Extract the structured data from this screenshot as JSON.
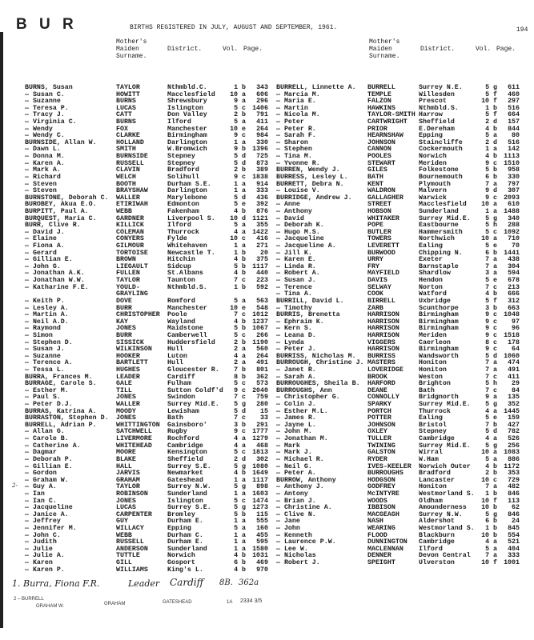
{
  "header": {
    "letters": "B U R",
    "title": "BIRTHS REGISTERED IN JULY, AUGUST AND SEPTEMBER, 1961.",
    "page_number": "194"
  },
  "columns": {
    "mother": [
      "Mother's",
      "Maiden",
      "Surname."
    ],
    "district": "District.",
    "vol": "Vol.",
    "page": "Page."
  },
  "left_rows": [
    [
      "BURNS, Susan",
      "TAYLOR",
      "Nthmbld.C.",
      "1 b",
      "343"
    ],
    [
      "— Susan C.",
      "HOWITT",
      "Macclesfield",
      "10 a",
      "606"
    ],
    [
      "— Suzanne",
      "BURNS",
      "Shrewsbury",
      "9 a",
      "296"
    ],
    [
      "— Teresa P.",
      "LUCAS",
      "Islington",
      "5 c",
      "1406"
    ],
    [
      "— Tracy J.",
      "CATT",
      "Don Valley",
      "2 b",
      "791"
    ],
    [
      "— Virginia C.",
      "BURNS",
      "Ilford",
      "5 a",
      "411"
    ],
    [
      "— Wendy",
      "FOX",
      "Manchester",
      "10 e",
      "264"
    ],
    [
      "— Wendy C.",
      "CLARKE",
      "Birmingham",
      "9 c",
      "984"
    ],
    [
      "BURNSIDE, Allan W.",
      "HOLLAND",
      "Darlington",
      "1 a",
      "330"
    ],
    [
      "— Dawn L.",
      "SMITH",
      "W.Bromwich",
      "9 b",
      "1396"
    ],
    [
      "— Donna M.",
      "BURNSIDE",
      "Stepney",
      "5 d",
      "725"
    ],
    [
      "— Karen A.",
      "RUSSELL",
      "Stepney",
      "5 d",
      "873"
    ],
    [
      "— Mark A.",
      "CLAVIN",
      "Bradford",
      "2 b",
      "389"
    ],
    [
      "— Richard",
      "WELCH",
      "Solihull",
      "9 c",
      "1838"
    ],
    [
      "— Steven",
      "BOOTH",
      "Durham S.E.",
      "1 a",
      "914"
    ],
    [
      "— Steven",
      "BRAYSHAW",
      "Darlington",
      "1 a",
      "333"
    ],
    [
      "BURNSTONE, Deborah C.",
      "WALLER",
      "Marylebone",
      "5 d",
      "436"
    ],
    [
      "BUROBEY, Akua E.O.",
      "ETIRIWAH",
      "Edmonton",
      "5 e",
      "392"
    ],
    [
      "BURPITT, Paul A.",
      "WEBB",
      "Fakenham",
      "4 b",
      "876"
    ],
    [
      "BURQUEST, Maria C.",
      "GARDNER",
      "Liverpool S.",
      "10 d",
      "1121"
    ],
    [
      "BURR, Clive R.",
      "KILLICK",
      "Ilford",
      "5 a",
      "355"
    ],
    [
      "— David J.",
      "COLEMAN",
      "Thurrock",
      "4 a",
      "1422"
    ],
    [
      "— Elaine",
      "CONYERS",
      "Fylde",
      "10 c",
      "416"
    ],
    [
      "— Fiona A.",
      "GILMOUR",
      "Whitehaven",
      "1 a",
      "271"
    ],
    [
      "— Gerard",
      "TORTOISE",
      "Newcastle T.",
      "1 b",
      "20"
    ],
    [
      "— Gillian E.",
      "BROWN",
      "Hitchin",
      "4 b",
      "375"
    ],
    [
      "— John G.",
      "LIEGAULT",
      "Sidcup",
      "5 b",
      "1117"
    ],
    [
      "— Jonathan A.K.",
      "FULLEN",
      "St.Albans",
      "4 b",
      "440"
    ],
    [
      "— Jonathan W.W.",
      "TAYLOR",
      "Taunton",
      "7 c",
      "223"
    ],
    [
      "— Katharine F.E.",
      "YOULD-",
      "Nthmbld.S.",
      "1 b",
      "592"
    ],
    [
      "",
      "GRAYLING",
      "",
      "",
      ""
    ],
    [
      "— Keith P.",
      "DOVE",
      "Romford",
      "5 a",
      "563"
    ],
    [
      "— Lesley A.",
      "BURR",
      "Manchester",
      "10 e",
      "548"
    ],
    [
      "— Martin A.",
      "CHRISTOPHER",
      "Poole",
      "7 c",
      "1012"
    ],
    [
      "— Neil A.D.",
      "KAY",
      "Wayland",
      "4 b",
      "1237"
    ],
    [
      "— Raymond",
      "JONES",
      "Maidstone",
      "5 b",
      "1067"
    ],
    [
      "— Simon",
      "BURR",
      "Camberwell",
      "5 c",
      "266"
    ],
    [
      "— Stephen D.",
      "SISSICK",
      "Huddersfield",
      "2 b",
      "1190"
    ],
    [
      "— Susan J.",
      "WILKINSON",
      "Hull",
      "2 a",
      "560"
    ],
    [
      "— Suzanne",
      "HOOKER",
      "Luton",
      "4 a",
      "264"
    ],
    [
      "— Terence A.",
      "BARTLETT",
      "Hull",
      "2 a",
      "491"
    ],
    [
      "— Tessa L.",
      "HUGHES",
      "Gloucester R.",
      "7 b",
      "801"
    ],
    [
      "BURRA, Frances M.",
      "LEADER",
      "Cardiff",
      "8 b",
      "362"
    ],
    [
      "BURRAGE, Carole S.",
      "GALE",
      "Fulham",
      "5 c",
      "573"
    ],
    [
      "— Esther M.",
      "TILL",
      "Sutton Coldf'd",
      "9 c",
      "2040"
    ],
    [
      "— Paul S.",
      "JONES",
      "Swindon",
      "7 c",
      "759"
    ],
    [
      "— Peter D.J.",
      "WALLER",
      "Surrey Mid.E.",
      "5 g",
      "280"
    ],
    [
      "BURRAS, Katrina A.",
      "MOODY",
      "Lewisham",
      "5 d",
      "15"
    ],
    [
      "BURRASTON, Stephen D.",
      "JONES",
      "Bath",
      "7 c",
      "33"
    ],
    [
      "BURRELL, Adrian P.",
      "WHITTINGTON",
      "Gainsboro'",
      "3 b",
      "291"
    ],
    [
      "— Allan G.",
      "SATCHWELL",
      "Rugby",
      "9 c",
      "1777"
    ],
    [
      "— Carole B.",
      "LIVERMORE",
      "Rochford",
      "4 a",
      "1279"
    ],
    [
      "— Catherine A.",
      "WHITEHEAD",
      "Cambridge",
      "4 a",
      "468"
    ],
    [
      "— Dagmar",
      "MOORE",
      "Kensington",
      "5 c",
      "1813"
    ],
    [
      "— Deborah P.",
      "BLAKE",
      "Sheffield",
      "2 d",
      "302"
    ],
    [
      "— Gillian E.",
      "HALL",
      "Surrey S.E.",
      "5 g",
      "1080"
    ],
    [
      "— Gordon",
      "JARVIS",
      "Newmarket",
      "4 b",
      "1649"
    ],
    [
      "— Graham W.",
      "GRAHAM",
      "Gateshead",
      "1 a",
      "1117"
    ],
    [
      "— Guy A.",
      "TAYLOR",
      "Surrey N.W.",
      "5 g",
      "898"
    ],
    [
      "— Ian",
      "ROBINSON",
      "Sunderland",
      "1 a",
      "1603"
    ],
    [
      "— Ian C.",
      "JONES",
      "Islington",
      "5 c",
      "1474"
    ],
    [
      "— Jacqueline",
      "LUCAS",
      "Surrey S.E.",
      "5 g",
      "1273"
    ],
    [
      "— Janice A.",
      "CARPENTER",
      "Bromley",
      "5 b",
      "115"
    ],
    [
      "— Jeffrey",
      "GUY",
      "Durham E.",
      "1 a",
      "555"
    ],
    [
      "— Jennifer M.",
      "WILLACY",
      "Epping",
      "5 a",
      "160"
    ],
    [
      "— John C.",
      "WEBB",
      "Durham C.",
      "1 a",
      "455"
    ],
    [
      "— Judith",
      "RUSSELL",
      "Durham E.",
      "1 a",
      "595"
    ],
    [
      "— Julie",
      "ANDERSON",
      "Sunderland",
      "1 a",
      "1580"
    ],
    [
      "— Julie A.",
      "TUTTLE",
      "Norwich",
      "4 b",
      "1031"
    ],
    [
      "— Karen",
      "GILL",
      "Gosport",
      "6 b",
      "469"
    ],
    [
      "— Karen P.",
      "WILLIAMS",
      "King's L.",
      "4 b",
      "970"
    ]
  ],
  "right_rows": [
    [
      "BURRELL, Linnette A.",
      "BURRELL",
      "Surrey N.E.",
      "5 g",
      "611"
    ],
    [
      "— Marcia M.",
      "TEMPLE",
      "Willesden",
      "5 f",
      "460"
    ],
    [
      "— Maria E.",
      "FALZON",
      "Prescot",
      "10 f",
      "297"
    ],
    [
      "— Martin",
      "HAWKINS",
      "Nthmbld.S.",
      "1 b",
      "516"
    ],
    [
      "— Nicola M.",
      "TAYLOR-SMITH",
      "Harrow",
      "5 f",
      "664"
    ],
    [
      "— Peter",
      "CARTWRIGHT",
      "Sheffield",
      "2 d",
      "157"
    ],
    [
      "— Peter R.",
      "PRIOR",
      "E.Dereham",
      "4 b",
      "844"
    ],
    [
      "— Sarah F.",
      "HEARNSHAW",
      "Epping",
      "5 a",
      "80"
    ],
    [
      "— Sharon",
      "JOHNSON",
      "Staincliffe",
      "2 d",
      "516"
    ],
    [
      "— Stephen",
      "CANNON",
      "Cockermouth",
      "1 a",
      "142"
    ],
    [
      "— Tina M.",
      "POOLES",
      "Norwich",
      "4 b",
      "1113"
    ],
    [
      "— Yvonne R.",
      "STEWART",
      "Meriden",
      "9 c",
      "1510"
    ],
    [
      "BURREN, Wendy J.",
      "GILES",
      "Folkestone",
      "5 b",
      "958"
    ],
    [
      "BURRESS, Lesley L.",
      "BATH",
      "Bournemouth",
      "6 b",
      "330"
    ],
    [
      "BURRETT, Debra N.",
      "KENT",
      "Plymouth",
      "7 a",
      "797"
    ],
    [
      "— Louise V.",
      "WALDRON",
      "Malvern",
      "9 d",
      "307"
    ],
    [
      "BURRIDGE, Andrew J.",
      "GALLAGHER",
      "Warwick",
      "9 c",
      "2093"
    ],
    [
      "— Anne",
      "STREET",
      "Macclesfield",
      "10 a",
      "610"
    ],
    [
      "— Anthony",
      "HOBSON",
      "Sunderland",
      "1 a",
      "1488"
    ],
    [
      "— David",
      "WHITAKER",
      "Surrey Mid.E.",
      "5 g",
      "340"
    ],
    [
      "— Deborah K.",
      "POPE",
      "Eastbourne",
      "5 h",
      "288"
    ],
    [
      "— Hugo M.S.",
      "BUTLER",
      "Hammersmith",
      "5 c",
      "1092"
    ],
    [
      "— Jacqueline",
      "TOWERS",
      "Northwich",
      "10 a",
      "710"
    ],
    [
      "— Jacqueline A.",
      "LEVERETT",
      "Ealing",
      "5 e",
      "70"
    ],
    [
      "— Jill K.",
      "BURWOOD",
      "Chipping N.",
      "6 b",
      "1441"
    ],
    [
      "— Karen E.",
      "URRY",
      "Exeter",
      "7 a",
      "438"
    ],
    [
      "— Linda R.",
      "FRY",
      "Barnstaple",
      "7 a",
      "304"
    ],
    [
      "— Robert A.",
      "MAYFIELD",
      "Shardlow",
      "3 a",
      "594"
    ],
    [
      "— Susan J.",
      "DAVIS",
      "Hendon",
      "5 e",
      "678"
    ],
    [
      "— Terence",
      "SELWAY",
      "Norton",
      "7 c",
      "213"
    ],
    [
      "— Tina A.",
      "COOK",
      "Watford",
      "4 b",
      "666"
    ],
    [
      "BURRILL, David L.",
      "BIRRELL",
      "Uxbridge",
      "5 f",
      "312"
    ],
    [
      "— Timothy",
      "ZARB",
      "Scunthorpe",
      "3 b",
      "663"
    ],
    [
      "BURRIS, Brenetta",
      "HARRISON",
      "Birmingham",
      "9 c",
      "1048"
    ],
    [
      "— Ephraim K.",
      "HARRISON",
      "Birmingham",
      "9 c",
      "97"
    ],
    [
      "— Kern S.",
      "HARRISON",
      "Birmingham",
      "9 c",
      "96"
    ],
    [
      "— Leana D.",
      "HARRISON",
      "Meriden",
      "9 c",
      "1518"
    ],
    [
      "— Lynda",
      "VIGGERS",
      "Caerleon",
      "8 c",
      "178"
    ],
    [
      "— Peter J.",
      "HARRISON",
      "Birmingham",
      "9 c",
      "64"
    ],
    [
      "BURRISS, Nicholas M.",
      "BURRISS",
      "Wandsworth",
      "5 d",
      "1060"
    ],
    [
      "BURROUGH, Christine J.",
      "MASTERS",
      "Honiton",
      "7 a",
      "474"
    ],
    [
      "— Janet R.",
      "LOVERIDGE",
      "Honiton",
      "7 a",
      "491"
    ],
    [
      "— Sarah A.",
      "BROOK",
      "Weston",
      "7 c",
      "411"
    ],
    [
      "BURROUGHES, Sheila B.",
      "HARFORD",
      "Brighton",
      "5 h",
      "29"
    ],
    [
      "BURROUGHS, Ann",
      "DEANE",
      "Bath",
      "7 c",
      "84"
    ],
    [
      "— Christopher G.",
      "CONNOLLY",
      "Bridgnorth",
      "9 a",
      "135"
    ],
    [
      "— Colin J.",
      "SPARKY",
      "Surrey Mid.E.",
      "5 g",
      "352"
    ],
    [
      "— Esther M.L.",
      "PORTCH",
      "Thurrock",
      "4 a",
      "1445"
    ],
    [
      "— James R.",
      "POTTER",
      "Ealing",
      "5 e",
      "159"
    ],
    [
      "— Jayne L.",
      "JOHNSON",
      "Bristol",
      "7 b",
      "427"
    ],
    [
      "— John M.",
      "OXLEY",
      "Stepney",
      "5 d",
      "782"
    ],
    [
      "— Jonathan M.",
      "TULLER",
      "Cambridge",
      "4 a",
      "526"
    ],
    [
      "— Mark",
      "TWINING",
      "Surrey Mid.E.",
      "5 g",
      "256"
    ],
    [
      "— Mark J.",
      "GALSTON",
      "Wirral",
      "10 a",
      "1083"
    ],
    [
      "— Michael R.",
      "RYDER",
      "W.Ham",
      "5 a",
      "886"
    ],
    [
      "— Neil G.",
      "IVES-KEELER",
      "Norwich Outer",
      "4 b",
      "1172"
    ],
    [
      "— Peter A.",
      "BURROUGHS",
      "Bradford",
      "2 b",
      "353"
    ],
    [
      "BURROW, Anthony",
      "HODGSON",
      "Lancaster",
      "10 c",
      "729"
    ],
    [
      "— Anthony J.",
      "GODFREY",
      "Honiton",
      "7 a",
      "482"
    ],
    [
      "— Antony",
      "McINTYRE",
      "Westmorland S.",
      "1 b",
      "846"
    ],
    [
      "— Brian J.",
      "WOODS",
      "Oldham",
      "10 f",
      "113"
    ],
    [
      "— Christine A.",
      "IBBISON",
      "Amounderness",
      "10 b",
      "62"
    ],
    [
      "— Clive N.",
      "MACGEAGH",
      "Surrey N.W.",
      "5 g",
      "846"
    ],
    [
      "— Jane",
      "NASH",
      "Aldershot",
      "6 b",
      "24"
    ],
    [
      "— John",
      "WEARING",
      "Westmorland S.",
      "1 b",
      "845"
    ],
    [
      "— Kenneth",
      "FLOOD",
      "Blackburn",
      "10 b",
      "554"
    ],
    [
      "— Laurence P.W.",
      "DUNNINGTON",
      "Cambridge",
      "4 a",
      "521"
    ],
    [
      "— Lee W.",
      "MACLENNAN",
      "Ilford",
      "5 a",
      "404"
    ],
    [
      "— Nicholas",
      "DENNER",
      "Devon Central",
      "7 a",
      "333"
    ],
    [
      "— Robert J.",
      "SPEIGHT",
      "Ulverston",
      "10 f",
      "1001"
    ]
  ],
  "annotations": {
    "margin_mark": "2-",
    "note1": {
      "num": "1.",
      "name": "Burra, Fiona F.R.",
      "mother": "Leader",
      "district": "Cardiff",
      "vol": "8B.",
      "page": "362a"
    },
    "note2": {
      "num": "2 –",
      "name": "BURRELL",
      "name2": "GRAHAM W.",
      "mother": "GRAHAM",
      "district": "GATESHEAD",
      "vol": "1A",
      "page": "2334 3/5"
    }
  }
}
